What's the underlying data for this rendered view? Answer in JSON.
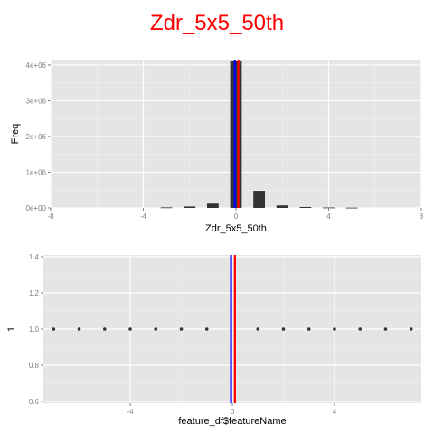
{
  "title": "Zdr_5x5_50th",
  "colors": {
    "title": "#ff0000",
    "panel": "#e5e5e5",
    "grid_major": "#ffffff",
    "grid_minor": "#f2f2f2",
    "bar": "#333333",
    "vline_blue": "#0000ff",
    "vline_red": "#ff0000",
    "tick_text": "#7f7f7f",
    "axis_title": "#000000"
  },
  "chart_data": [
    {
      "type": "bar",
      "xlabel": "Zdr_5x5_50th",
      "ylabel": "Freq",
      "xlim": [
        -8,
        8
      ],
      "ylim": [
        0,
        4150000
      ],
      "x_ticks": [
        -8,
        -4,
        0,
        4,
        8
      ],
      "x_tick_labels": [
        "-8",
        "-4",
        "0",
        "4",
        "8"
      ],
      "y_ticks": [
        0,
        1000000,
        2000000,
        3000000,
        4000000
      ],
      "y_tick_labels": [
        "0e+00",
        "1e+06",
        "2e+06",
        "3e+06",
        "4e+06"
      ],
      "bars": [
        {
          "x": -3,
          "value": 15000
        },
        {
          "x": -2,
          "value": 40000
        },
        {
          "x": -1,
          "value": 120000
        },
        {
          "x": 0,
          "value": 4100000
        },
        {
          "x": 1,
          "value": 480000
        },
        {
          "x": 2,
          "value": 70000
        },
        {
          "x": 3,
          "value": 25000
        },
        {
          "x": 4,
          "value": 12000
        },
        {
          "x": 5,
          "value": 8000
        }
      ],
      "vlines": [
        {
          "x": -0.05,
          "color": "#0000ff"
        },
        {
          "x": 0.1,
          "color": "#ff0000"
        }
      ],
      "grid": true
    },
    {
      "type": "scatter",
      "xlabel": "feature_df$featureName",
      "ylabel": "1",
      "xlim": [
        -7.4,
        7.4
      ],
      "ylim": [
        0.59,
        1.41
      ],
      "x_ticks": [
        -4,
        0,
        4
      ],
      "x_tick_labels": [
        "-4",
        "0",
        "4"
      ],
      "y_ticks": [
        0.6,
        0.8,
        1.0,
        1.2,
        1.4
      ],
      "y_tick_labels": [
        "0.6",
        "0.8",
        "1.0",
        "1.2",
        "1.4"
      ],
      "points": [
        {
          "x": -7,
          "y": 1.0
        },
        {
          "x": -6,
          "y": 1.0
        },
        {
          "x": -5,
          "y": 1.0
        },
        {
          "x": -4,
          "y": 1.0
        },
        {
          "x": -3,
          "y": 1.0
        },
        {
          "x": -2,
          "y": 1.0
        },
        {
          "x": -1,
          "y": 1.0
        },
        {
          "x": 1,
          "y": 1.0
        },
        {
          "x": 2,
          "y": 1.0
        },
        {
          "x": 3,
          "y": 1.0
        },
        {
          "x": 4,
          "y": 1.0
        },
        {
          "x": 5,
          "y": 1.0
        },
        {
          "x": 6,
          "y": 1.0
        },
        {
          "x": 7,
          "y": 1.0
        }
      ],
      "vlines": [
        {
          "x": -0.05,
          "color": "#0000ff"
        },
        {
          "x": 0.1,
          "color": "#ff0000"
        }
      ],
      "grid": true
    }
  ]
}
